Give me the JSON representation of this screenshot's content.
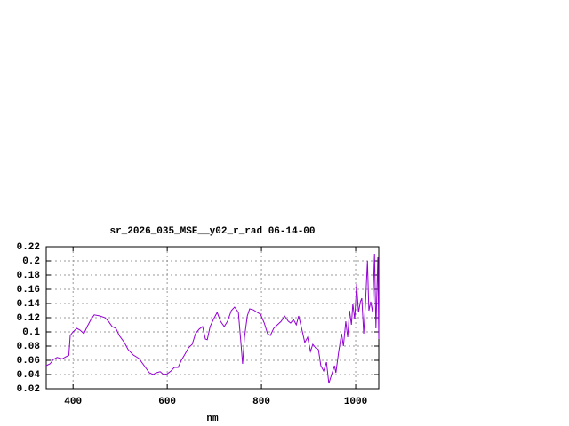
{
  "chart_data": {
    "type": "line",
    "title": "sr_2026_035_MSE__y02_r_rad 06-14-00",
    "x_label": "nm",
    "xlim": [
      343,
      1049
    ],
    "xticks": [
      400,
      600,
      800,
      1000
    ],
    "ylim": [
      0.02,
      0.22
    ],
    "yticks": [
      0.02,
      0.04,
      0.06,
      0.08,
      0.1,
      0.12,
      0.14,
      0.16,
      0.18,
      0.2,
      0.22
    ],
    "grid": true,
    "series": [
      {
        "color": "#9400d3",
        "x": [
          343,
          351,
          358,
          366,
          377,
          385,
          391,
          394,
          400,
          408,
          415,
          423,
          430,
          438,
          445,
          457,
          468,
          475,
          483,
          491,
          498,
          509,
          517,
          528,
          540,
          551,
          562,
          570,
          577,
          585,
          592,
          600,
          608,
          615,
          623,
          630,
          638,
          645,
          653,
          660,
          668,
          675,
          681,
          685,
          691,
          698,
          706,
          713,
          721,
          728,
          736,
          743,
          751,
          757,
          760,
          764,
          770,
          775,
          783,
          791,
          798,
          806,
          813,
          819,
          826,
          834,
          842,
          849,
          857,
          862,
          868,
          874,
          879,
          887,
          892,
          898,
          904,
          909,
          915,
          921,
          926,
          932,
          938,
          943,
          949,
          955,
          958,
          964,
          970,
          974,
          979,
          983,
          987,
          991,
          994,
          998,
          1002,
          1006,
          1010,
          1013,
          1017,
          1021,
          1025,
          1028,
          1032,
          1036,
          1040,
          1043,
          1047,
          1049
        ],
        "values": [
          0.0525,
          0.055,
          0.061,
          0.064,
          0.062,
          0.065,
          0.067,
          0.095,
          0.1,
          0.105,
          0.1025,
          0.0975,
          0.1075,
          0.1175,
          0.124,
          0.1225,
          0.12,
          0.115,
          0.1075,
          0.105,
          0.095,
          0.085,
          0.075,
          0.0675,
          0.0625,
          0.0525,
          0.0425,
          0.04,
          0.0425,
          0.044,
          0.04,
          0.041,
          0.045,
          0.05,
          0.05,
          0.06,
          0.069,
          0.0775,
          0.0825,
          0.0975,
          0.104,
          0.1075,
          0.09,
          0.089,
          0.1075,
          0.1175,
          0.1275,
          0.115,
          0.1075,
          0.115,
          0.13,
          0.135,
          0.1275,
          0.08,
          0.055,
          0.0925,
          0.1225,
          0.1325,
          0.131,
          0.1275,
          0.125,
          0.1125,
          0.0975,
          0.095,
          0.105,
          0.11,
          0.115,
          0.1225,
          0.115,
          0.1125,
          0.1175,
          0.11,
          0.1225,
          0.1,
          0.085,
          0.0925,
          0.0725,
          0.0825,
          0.0775,
          0.075,
          0.0525,
          0.045,
          0.0575,
          0.0275,
          0.04,
          0.0525,
          0.0425,
          0.0725,
          0.0975,
          0.08,
          0.115,
          0.0925,
          0.13,
          0.11,
          0.14,
          0.1175,
          0.1675,
          0.1275,
          0.1425,
          0.1475,
          0.0975,
          0.1425,
          0.2,
          0.13,
          0.1425,
          0.1275,
          0.21,
          0.105,
          0.205,
          0.09
        ]
      }
    ]
  }
}
